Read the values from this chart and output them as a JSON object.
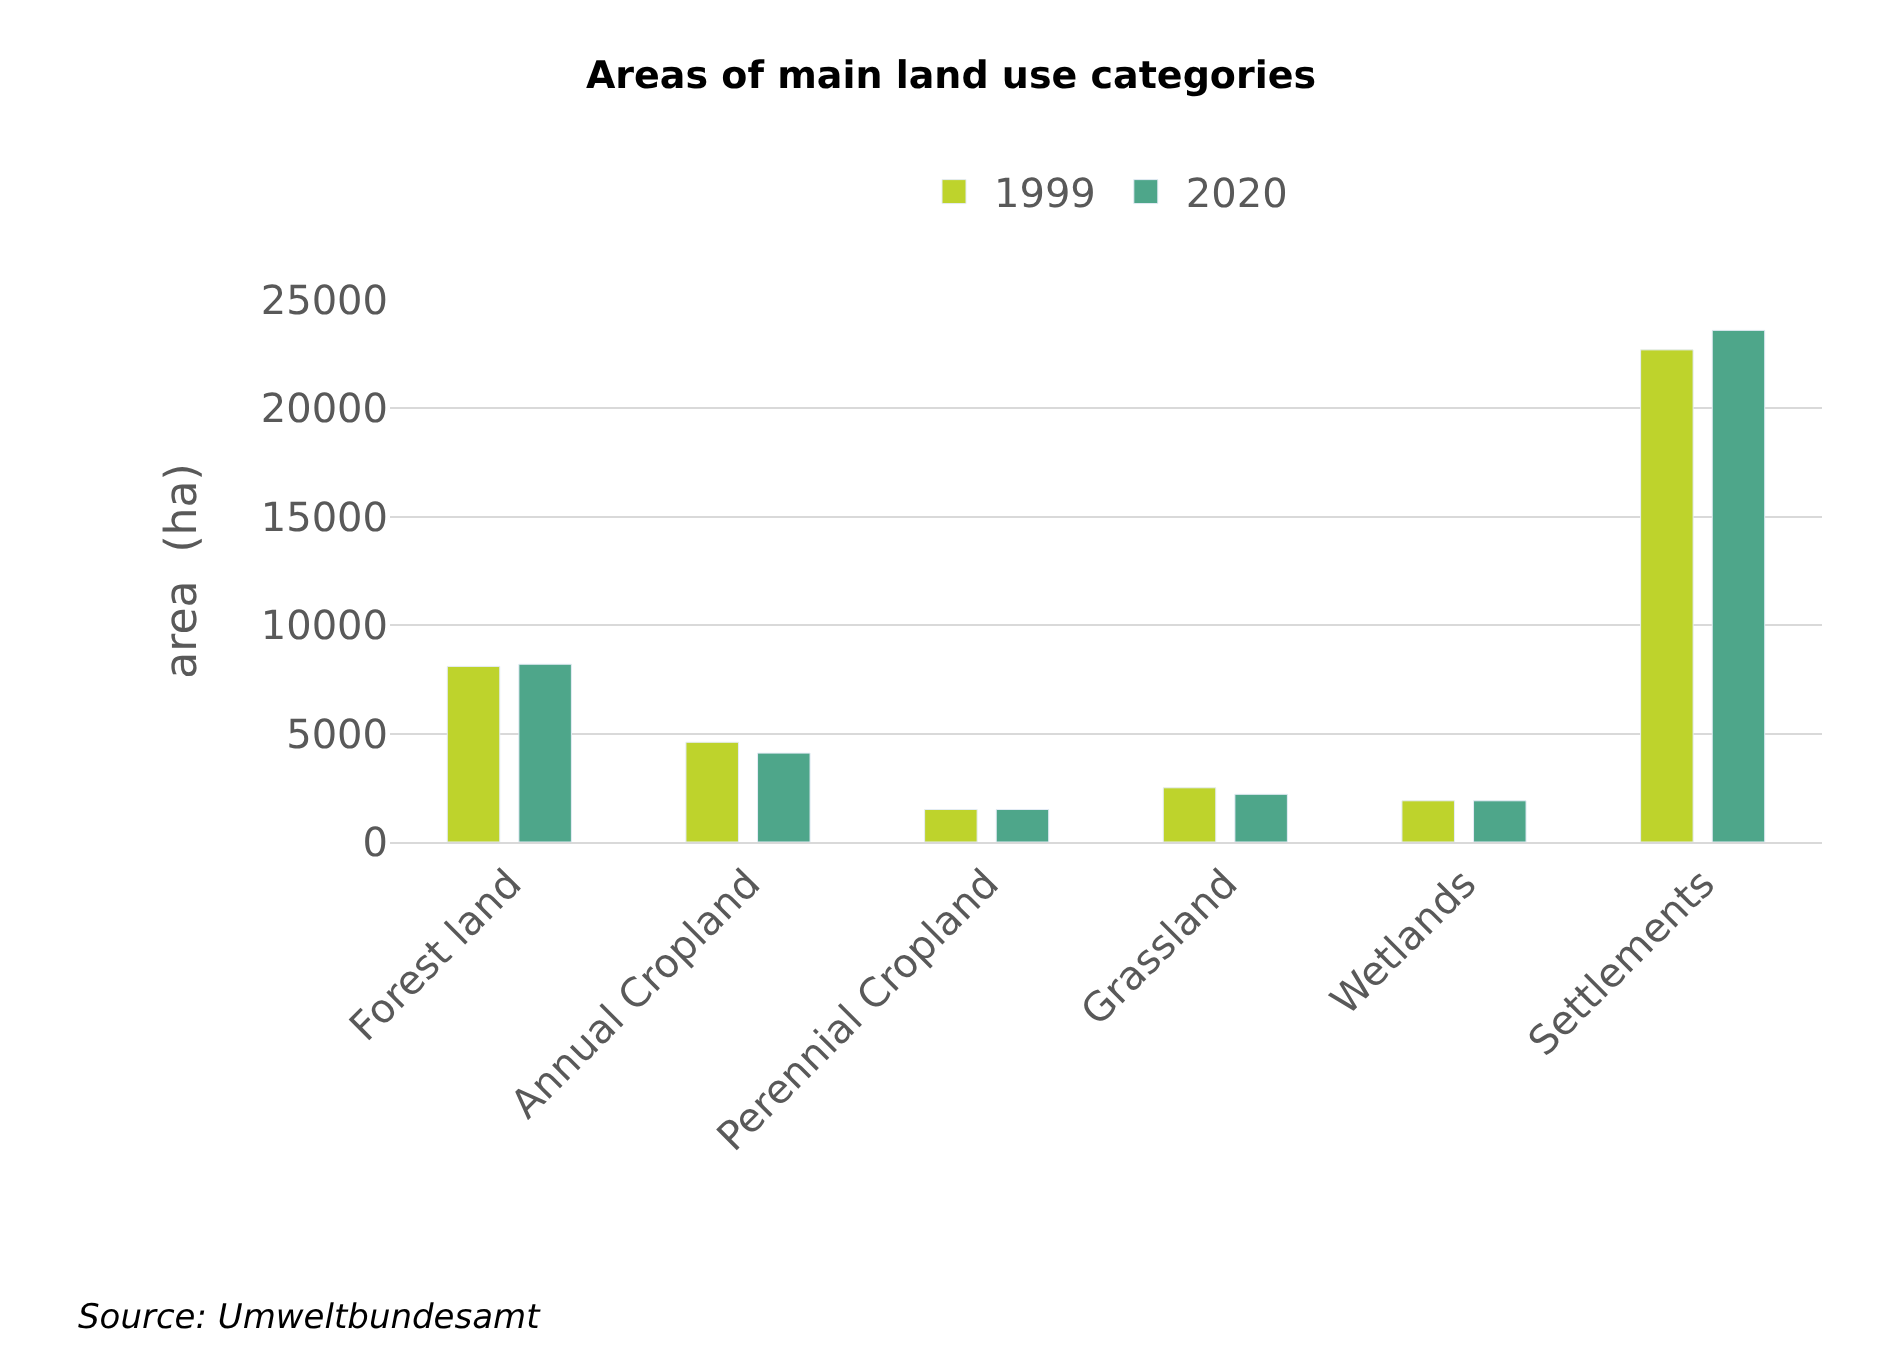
{
  "chart_data": {
    "type": "bar",
    "title": "Areas of main land use categories",
    "ylabel": "area  (ha)",
    "categories": [
      "Forest land",
      "Annual Cropland",
      "Perennial Cropland",
      "Grassland",
      "Wetlands",
      "Settlements"
    ],
    "series": [
      {
        "name": "1999",
        "color": "#bed32c",
        "values": [
          8100,
          4600,
          1500,
          2500,
          1900,
          22700
        ]
      },
      {
        "name": "2020",
        "color": "#4ea68a",
        "values": [
          8200,
          4100,
          1500,
          2200,
          1900,
          23600
        ]
      }
    ],
    "ylim": [
      0,
      25000
    ],
    "yticks": [
      0,
      5000,
      10000,
      15000,
      20000,
      25000
    ],
    "grid": "y",
    "legend": "top",
    "annotations": [
      "Source: Umweltbundesamt"
    ]
  }
}
